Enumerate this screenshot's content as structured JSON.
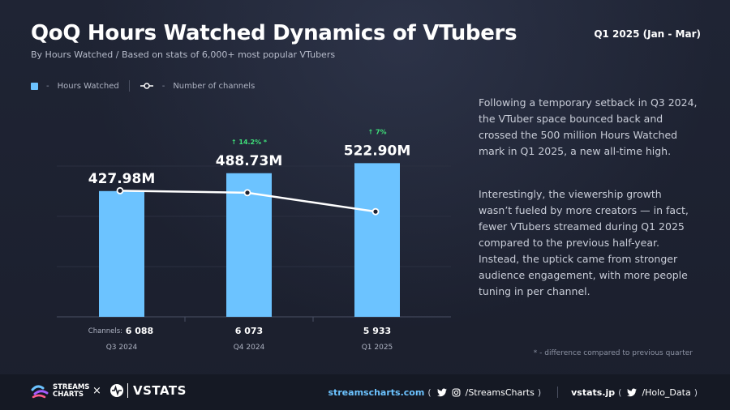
{
  "header": {
    "title": "QoQ Hours Watched Dynamics of VTubers",
    "subtitle": "By Hours Watched / Based on stats of 6,000+ most popular VTubers",
    "period": "Q1 2025 (Jan - Mar)"
  },
  "legend": {
    "hours_label": "Hours Watched",
    "channels_label": "Number of channels",
    "separator": "-"
  },
  "chart_data": {
    "type": "bar",
    "categories": [
      "Q3 2024",
      "Q4 2024",
      "Q1 2025"
    ],
    "series": [
      {
        "name": "Hours Watched",
        "type": "bar",
        "unit": "M",
        "values": [
          427.98,
          488.73,
          522.9
        ],
        "labels": [
          "427.98M",
          "488.73M",
          "522.90M"
        ],
        "color": "#6cc3ff"
      },
      {
        "name": "Number of channels",
        "type": "line",
        "values": [
          6088,
          6073,
          5933
        ],
        "labels": [
          "6 088",
          "6 073",
          "5 933"
        ],
        "color": "#ffffff"
      }
    ],
    "growth_labels": [
      "",
      "↑ 14.2% *",
      "↑ 7%"
    ],
    "growth_color": "#3fe07a",
    "channels_prefix": "Channels:",
    "ylim": [
      0,
      600
    ]
  },
  "description": {
    "p1": "Following a temporary setback in Q3 2024, the VTuber space bounced back and crossed the 500 million Hours Watched mark in Q1 2025, a new all-time high.",
    "p2": "Interestingly, the viewership growth wasn’t fueled by more creators — in fact, fewer VTubers streamed during Q1 2025 compared to the previous half-year. Instead, the uptick came from stronger audience engagement, with more people tuning in per channel."
  },
  "footnote": "* - difference compared to previous quarter",
  "footer": {
    "brand1_line1": "STREAMS",
    "brand1_line2": "CHARTS",
    "times": "×",
    "brand2": "VSTATS",
    "site1": "streamscharts.com",
    "handle1": "/StreamsCharts",
    "site2": "vstats.jp",
    "handle2": "/Holo_Data",
    "open_paren": "(",
    "close_paren": ")"
  },
  "icons": [
    "twitter-icon",
    "instagram-icon",
    "streamscharts-logo-icon",
    "vstats-logo-icon"
  ]
}
